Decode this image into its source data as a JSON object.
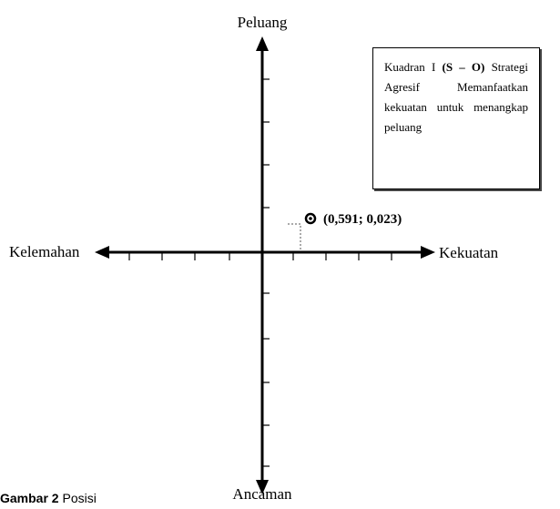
{
  "diagram": {
    "axis_top_label": "Peluang",
    "axis_bottom_label": "Ancaman",
    "axis_left_label": "Kelemahan",
    "axis_right_label": "Kekuatan",
    "point": {
      "x": 0.591,
      "y": 0.023,
      "label": "(0,591; 0,023)"
    },
    "quadrant_box": {
      "prefix": "Kuadran I ",
      "code": "(S – O)",
      "text": " Strategi Agresif Memanfaatkan kekuatan untuk menangkap peluang"
    }
  },
  "caption": {
    "bold": "Gambar 2",
    "text": " Posisi"
  },
  "colors": {
    "ink": "#000000",
    "background": "#ffffff",
    "dashed_guide": "#555555"
  }
}
